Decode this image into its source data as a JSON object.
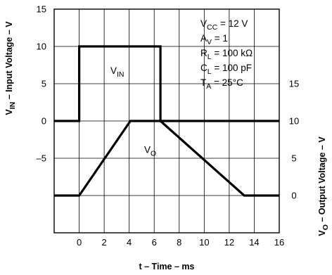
{
  "chart_data": {
    "type": "line",
    "xlabel": "t – Time – ms",
    "ylabel_left": {
      "main": "V",
      "sub": "IN",
      "rest": " – Input Voltage – V"
    },
    "ylabel_right": {
      "main": "V",
      "sub": "O",
      "rest": " – Output Voltage – V"
    },
    "x_ticks": [
      0,
      2,
      4,
      6,
      8,
      10,
      12,
      14,
      16
    ],
    "xlim": [
      -2,
      16
    ],
    "left_ticks": [
      15,
      10,
      5,
      0,
      -5
    ],
    "left_tick_labels": [
      "15",
      "10",
      "5",
      "0",
      "–5"
    ],
    "ylim_left": [
      -15,
      15
    ],
    "right_ticks": [
      15,
      10,
      5,
      0
    ],
    "ylim_right": [
      -5,
      25
    ],
    "grid": true,
    "series": [
      {
        "name": "VIN",
        "axis": "left",
        "x": [
          -2,
          0,
          0,
          6.5,
          6.5,
          16
        ],
        "y": [
          0,
          0,
          10,
          10,
          0,
          0
        ]
      },
      {
        "name": "VO",
        "axis": "right",
        "x": [
          -2,
          0,
          4.1,
          6.5,
          13.2,
          16
        ],
        "y": [
          0,
          0,
          10,
          10,
          0,
          0
        ]
      }
    ],
    "trace_labels": [
      {
        "main": "V",
        "sub": "IN",
        "x": 2.5,
        "y_left": 6.3
      },
      {
        "main": "V",
        "sub": "O",
        "x": 5.2,
        "y_right": 5.7
      }
    ],
    "conditions": [
      {
        "main": "V",
        "sub": "CC",
        "rest": " = 12 V"
      },
      {
        "main": "A",
        "sub": "V",
        "rest": " = 1"
      },
      {
        "main": "R",
        "sub": "L",
        "rest": " = 100 kΩ"
      },
      {
        "main": "C",
        "sub": "L",
        "rest": " = 100 pF"
      },
      {
        "main": "T",
        "sub": "A",
        "rest": " = 25°C"
      }
    ]
  }
}
